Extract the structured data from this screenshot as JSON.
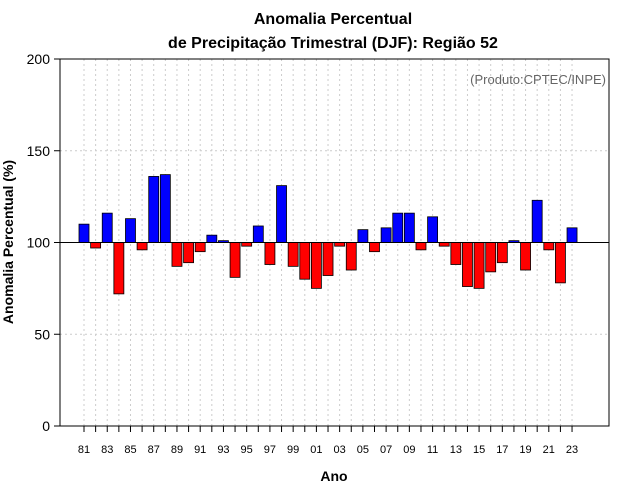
{
  "chart_data": {
    "type": "bar",
    "title_line1": "Anomalia Percentual",
    "title_line2": "de Precipitação Trimestral (DJF): Região 52",
    "xlabel": "Ano",
    "ylabel": "Anomalia Percentual (%)",
    "annotation": "(Produto:CPTEC/INPE)",
    "ylim": [
      0,
      200
    ],
    "yticks": [
      "0",
      "50",
      "100",
      "150",
      "200"
    ],
    "baseline": 100,
    "categories": [
      1981,
      1982,
      1983,
      1984,
      1985,
      1986,
      1987,
      1988,
      1989,
      1990,
      1991,
      1992,
      1993,
      1994,
      1995,
      1996,
      1997,
      1998,
      1999,
      2000,
      2001,
      2002,
      2003,
      2004,
      2005,
      2006,
      2007,
      2008,
      2009,
      2010,
      2011,
      2012,
      2013,
      2014,
      2015,
      2016,
      2017,
      2018,
      2019,
      2020,
      2021,
      2022,
      2023
    ],
    "values": [
      110,
      97,
      116,
      72,
      113,
      96,
      136,
      137,
      87,
      89,
      95,
      104,
      101,
      81,
      98,
      109,
      88,
      131,
      87,
      80,
      75,
      82,
      98,
      85,
      107,
      95,
      108,
      116,
      116,
      96,
      114,
      98,
      88,
      76,
      75,
      84,
      89,
      101,
      85,
      123,
      96,
      78,
      108
    ],
    "xtick_labels": [
      "81",
      "83",
      "85",
      "87",
      "89",
      "91",
      "93",
      "95",
      "97",
      "99",
      "01",
      "03",
      "05",
      "07",
      "09",
      "11",
      "13",
      "15",
      "17",
      "19",
      "21",
      "23"
    ],
    "colors": {
      "above": "#0000ff",
      "below": "#ff0000",
      "edge": "#000000",
      "grid": "#cccccc"
    },
    "grid": true
  }
}
